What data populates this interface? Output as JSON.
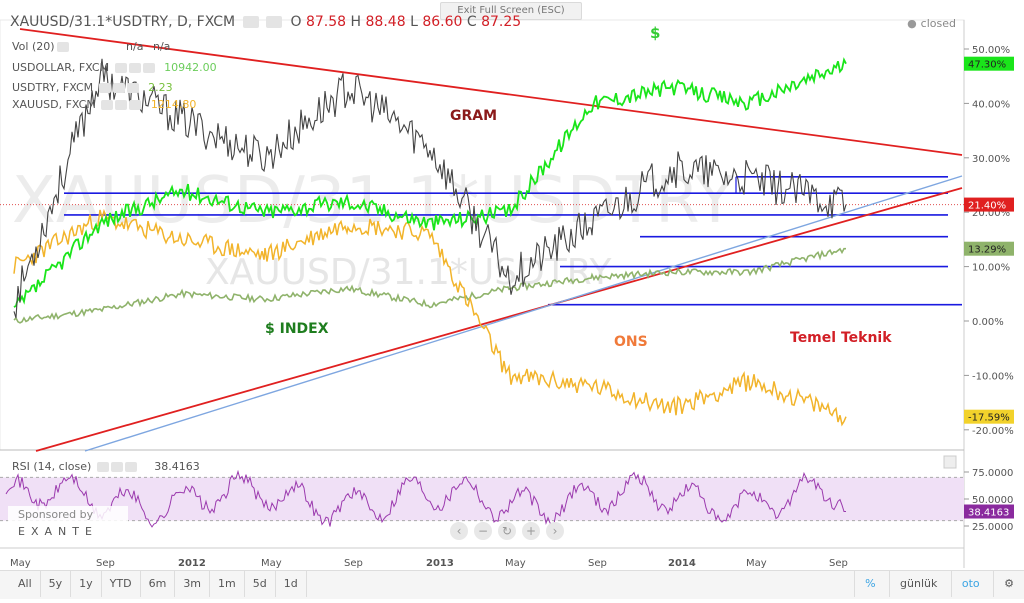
{
  "toolbar": {
    "exit_fullscreen": "Exit Full Screen (ESC)",
    "status": "closed"
  },
  "header": {
    "symbol": "XAUUSD/31.1*USDTRY, D, FXCM",
    "o_label": "O",
    "o_value": "87.58",
    "h_label": "H",
    "h_value": "88.48",
    "l_label": "L",
    "l_value": "86.60",
    "c_label": "C",
    "c_value": "87.25"
  },
  "legend": {
    "vol": {
      "label": "Vol (20)",
      "v1": "n/a",
      "v2": "n/a"
    },
    "usdollar": {
      "label": "USDOLLAR, FXCM",
      "value": "10942.00",
      "color": "#1ae51a"
    },
    "usdtry": {
      "label": "USDTRY, FXCM",
      "value": "2.23",
      "color": "#8fb36b"
    },
    "xauusd": {
      "label": "XAUUSD, FXCM",
      "value": "1214.80",
      "color": "#f2b42b"
    }
  },
  "watermark": {
    "big": "XAUUSD/31.1*USDTRY",
    "mid": "XAUUSD/31.1*USDTRY"
  },
  "annotations": {
    "dollar": "$",
    "gram": "GRAM",
    "dollar_index": "$ INDEX",
    "ons": "ONS",
    "temel": "Temel Teknik"
  },
  "rsi": {
    "label": "RSI (14, close)",
    "value": "38.4163"
  },
  "sponsor": {
    "line1": "Sponsored by",
    "line2": "EXANTE"
  },
  "timeframes": [
    "All",
    "5y",
    "1y",
    "YTD",
    "6m",
    "3m",
    "1m",
    "5d",
    "1d"
  ],
  "bottom_right": {
    "percent": "%",
    "log": "günlük",
    "auto": "oto"
  },
  "chart_data": [
    {
      "type": "line",
      "title": "XAUUSD/31.1*USDTRY, D, FXCM",
      "x_ticks": [
        "May",
        "Sep",
        "2012",
        "May",
        "Sep",
        "2013",
        "May",
        "Sep",
        "2014",
        "May",
        "Sep"
      ],
      "y_axis": {
        "unit": "%",
        "ticks": [
          "50.00%",
          "40.00%",
          "30.00%",
          "20.00%",
          "10.00%",
          "0.00%",
          "-10.00%",
          "-20.00%"
        ],
        "range": [
          -22,
          55
        ]
      },
      "badges": [
        {
          "label": "47.30%",
          "value": 47.3,
          "color": "#1ae51a"
        },
        {
          "label": "21.40%",
          "value": 21.4,
          "color": "#e02020"
        },
        {
          "label": "13.29%",
          "value": 13.29,
          "color": "#8fb36b"
        },
        {
          "label": "-17.59%",
          "value": -17.59,
          "color": "#f2d22b"
        }
      ],
      "series": [
        {
          "name": "USDOLLAR, FXCM",
          "color": "#1ae51a",
          "x": [
            "May",
            "Sep",
            "2012",
            "May",
            "Sep",
            "2013",
            "May",
            "Sep",
            "2014",
            "May",
            "Sep"
          ],
          "values": [
            2,
            18,
            24,
            20,
            22,
            18,
            20,
            40,
            43,
            40,
            47.3
          ]
        },
        {
          "name": "USDTRY, FXCM",
          "color": "#8fb36b",
          "x": [
            "May",
            "Sep",
            "2012",
            "May",
            "Sep",
            "2013",
            "May",
            "Sep",
            "2014",
            "May",
            "Sep"
          ],
          "values": [
            0,
            2,
            5,
            4,
            6,
            3,
            6,
            8,
            9,
            9,
            13.29
          ]
        },
        {
          "name": "XAUUSD, FXCM",
          "color": "#f2b42b",
          "x": [
            "May",
            "Sep",
            "2012",
            "May",
            "Sep",
            "2013",
            "May",
            "Sep",
            "2014",
            "May",
            "Sep"
          ],
          "values": [
            10,
            19,
            15,
            12,
            18,
            16,
            -10,
            -12,
            -16,
            -11,
            -17.59
          ]
        },
        {
          "name": "XAUUSD/31.1*USDTRY",
          "color": "#444444",
          "x": [
            "May",
            "Sep",
            "2012",
            "May",
            "Sep",
            "2013",
            "May",
            "Sep",
            "2014",
            "May",
            "Sep"
          ],
          "values": [
            3,
            45,
            37,
            30,
            43,
            32,
            8,
            18,
            28,
            26,
            21.4
          ]
        }
      ],
      "support_lines_pct": [
        26.5,
        23.5,
        19.5,
        15.5,
        10.0,
        3.0
      ]
    },
    {
      "type": "line",
      "title": "RSI (14, close)",
      "y_axis": {
        "ticks": [
          "75.0000",
          "50.0000",
          "25.0000"
        ],
        "range": [
          15,
          90
        ]
      },
      "last_value": 38.4163
    }
  ]
}
